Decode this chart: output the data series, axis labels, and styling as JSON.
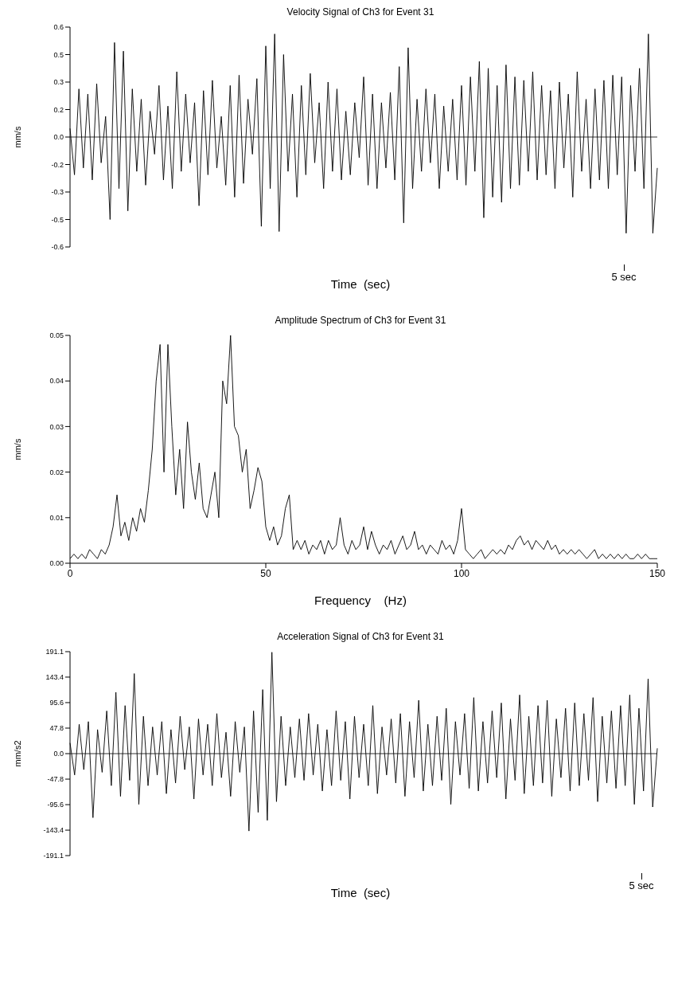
{
  "chart_data": [
    {
      "type": "line",
      "title": "Velocity Signal of Ch3 for Event 31",
      "xlabel": "Time  (sec)",
      "ylabel": "mm/s",
      "marker": "none",
      "line_style": "solid",
      "annotations": [
        "5 sec"
      ],
      "ylim": [
        -0.64,
        0.64
      ],
      "yticks": [
        {
          "value": 0.64,
          "label": "0.6"
        },
        {
          "value": 0.48,
          "label": "0.5"
        },
        {
          "value": 0.32,
          "label": "0.3"
        },
        {
          "value": 0.16,
          "label": "0.2"
        },
        {
          "value": 0,
          "label": "0.0"
        },
        {
          "value": -0.16,
          "label": "-0.2"
        },
        {
          "value": -0.32,
          "label": "-0.3"
        },
        {
          "value": -0.48,
          "label": "-0.5"
        },
        {
          "value": -0.64,
          "label": "-0.6"
        }
      ],
      "ref_lines": [
        {
          "axis": "y",
          "value": 0,
          "color": "#000000"
        }
      ],
      "categories": [
        null,
        null,
        null,
        null,
        null,
        null,
        null,
        null,
        null,
        null,
        null,
        null,
        null,
        null,
        null,
        null,
        null,
        null,
        null,
        null,
        null,
        null,
        null,
        null,
        null,
        null,
        null,
        null,
        null,
        null,
        null,
        null,
        null,
        null,
        null,
        null,
        null,
        null,
        null,
        null,
        null,
        null,
        null,
        null,
        null,
        null,
        null,
        null,
        null,
        null,
        null,
        null,
        null,
        null,
        null,
        null,
        null,
        null,
        null,
        null,
        null,
        null,
        null,
        null,
        null,
        null,
        null,
        null,
        null,
        null,
        null,
        null,
        null,
        null,
        null,
        null,
        null,
        null,
        null,
        null,
        null,
        null,
        null,
        null,
        null,
        null,
        null,
        null,
        null,
        null,
        null,
        null,
        null,
        null,
        null,
        null,
        null,
        null,
        null,
        null,
        null,
        null,
        null,
        null,
        null,
        null,
        null,
        null,
        null,
        null,
        null,
        null,
        null,
        null,
        null,
        null,
        null,
        null,
        null,
        null,
        null,
        null,
        null,
        null,
        null,
        null,
        null,
        null,
        null,
        null,
        null,
        null,
        null
      ],
      "series": [
        {
          "color": "#000000",
          "values": [
            0.05,
            -0.22,
            0.28,
            -0.18,
            0.25,
            -0.25,
            0.31,
            -0.15,
            0.12,
            -0.48,
            0.55,
            -0.3,
            0.5,
            -0.43,
            0.28,
            -0.2,
            0.22,
            -0.28,
            0.15,
            -0.1,
            0.3,
            -0.25,
            0.18,
            -0.3,
            0.38,
            -0.2,
            0.25,
            -0.15,
            0.2,
            -0.4,
            0.27,
            -0.22,
            0.33,
            -0.18,
            0.12,
            -0.28,
            0.3,
            -0.35,
            0.36,
            -0.27,
            0.22,
            -0.1,
            0.34,
            -0.52,
            0.53,
            -0.3,
            0.6,
            -0.55,
            0.48,
            -0.2,
            0.25,
            -0.35,
            0.3,
            -0.22,
            0.37,
            -0.15,
            0.2,
            -0.3,
            0.32,
            -0.2,
            0.28,
            -0.25,
            0.15,
            -0.22,
            0.2,
            -0.12,
            0.35,
            -0.28,
            0.25,
            -0.3,
            0.2,
            -0.18,
            0.26,
            -0.25,
            0.41,
            -0.5,
            0.52,
            -0.3,
            0.22,
            -0.2,
            0.28,
            -0.15,
            0.25,
            -0.3,
            0.18,
            -0.2,
            0.22,
            -0.25,
            0.3,
            -0.28,
            0.35,
            -0.2,
            0.44,
            -0.47,
            0.4,
            -0.35,
            0.3,
            -0.38,
            0.42,
            -0.3,
            0.35,
            -0.28,
            0.33,
            -0.2,
            0.38,
            -0.25,
            0.3,
            -0.22,
            0.27,
            -0.3,
            0.32,
            -0.18,
            0.25,
            -0.35,
            0.38,
            -0.2,
            0.22,
            -0.3,
            0.28,
            -0.25,
            0.33,
            -0.3,
            0.36,
            -0.22,
            0.35,
            -0.56,
            0.3,
            -0.2,
            0.4,
            -0.3,
            0.6,
            -0.56,
            -0.18
          ]
        }
      ]
    },
    {
      "type": "line",
      "title": "Amplitude Spectrum of Ch3 for Event 31",
      "xlabel": "Frequency    (Hz)",
      "ylabel": "mm/s",
      "marker": "none",
      "line_style": "solid",
      "xlim": [
        0,
        150
      ],
      "xticks": [
        0,
        50,
        100,
        150
      ],
      "ylim": [
        0,
        0.05
      ],
      "yticks": [
        {
          "value": 0,
          "label": "0.00"
        },
        {
          "value": 0.01,
          "label": "0.01"
        },
        {
          "value": 0.02,
          "label": "0.02"
        },
        {
          "value": 0.03,
          "label": "0.03"
        },
        {
          "value": 0.04,
          "label": "0.04"
        },
        {
          "value": 0.05,
          "label": "0.05"
        }
      ],
      "x": [
        0,
        1,
        2,
        3,
        4,
        5,
        6,
        7,
        8,
        9,
        10,
        11,
        12,
        13,
        14,
        15,
        16,
        17,
        18,
        19,
        20,
        21,
        22,
        23,
        24,
        25,
        26,
        27,
        28,
        29,
        30,
        31,
        32,
        33,
        34,
        35,
        36,
        37,
        38,
        39,
        40,
        41,
        42,
        43,
        44,
        45,
        46,
        47,
        48,
        49,
        50,
        51,
        52,
        53,
        54,
        55,
        56,
        57,
        58,
        59,
        60,
        61,
        62,
        63,
        64,
        65,
        66,
        67,
        68,
        69,
        70,
        71,
        72,
        73,
        74,
        75,
        76,
        77,
        78,
        79,
        80,
        81,
        82,
        83,
        84,
        85,
        86,
        87,
        88,
        89,
        90,
        91,
        92,
        93,
        94,
        95,
        96,
        97,
        98,
        99,
        100,
        101,
        102,
        103,
        104,
        105,
        106,
        107,
        108,
        109,
        110,
        111,
        112,
        113,
        114,
        115,
        116,
        117,
        118,
        119,
        120,
        121,
        122,
        123,
        124,
        125,
        126,
        127,
        128,
        129,
        130,
        131,
        132,
        133,
        134,
        135,
        136,
        137,
        138,
        139,
        140,
        141,
        142,
        143,
        144,
        145,
        146,
        147,
        148,
        149,
        150
      ],
      "series": [
        {
          "color": "#000000",
          "values": [
            0.001,
            0.002,
            0.001,
            0.002,
            0.001,
            0.003,
            0.002,
            0.001,
            0.003,
            0.002,
            0.004,
            0.008,
            0.015,
            0.006,
            0.009,
            0.005,
            0.01,
            0.007,
            0.012,
            0.009,
            0.016,
            0.025,
            0.04,
            0.048,
            0.02,
            0.048,
            0.03,
            0.015,
            0.025,
            0.012,
            0.031,
            0.02,
            0.014,
            0.022,
            0.012,
            0.01,
            0.015,
            0.02,
            0.01,
            0.04,
            0.035,
            0.05,
            0.03,
            0.028,
            0.02,
            0.025,
            0.012,
            0.016,
            0.021,
            0.018,
            0.008,
            0.005,
            0.008,
            0.004,
            0.006,
            0.012,
            0.015,
            0.003,
            0.005,
            0.003,
            0.005,
            0.002,
            0.004,
            0.003,
            0.005,
            0.002,
            0.005,
            0.003,
            0.004,
            0.01,
            0.004,
            0.002,
            0.005,
            0.003,
            0.004,
            0.008,
            0.003,
            0.007,
            0.004,
            0.002,
            0.004,
            0.003,
            0.005,
            0.002,
            0.004,
            0.006,
            0.003,
            0.004,
            0.007,
            0.003,
            0.004,
            0.002,
            0.004,
            0.003,
            0.002,
            0.005,
            0.003,
            0.004,
            0.002,
            0.005,
            0.012,
            0.003,
            0.002,
            0.001,
            0.002,
            0.003,
            0.001,
            0.002,
            0.003,
            0.002,
            0.003,
            0.002,
            0.004,
            0.003,
            0.005,
            0.006,
            0.004,
            0.005,
            0.003,
            0.005,
            0.004,
            0.003,
            0.005,
            0.003,
            0.004,
            0.002,
            0.003,
            0.002,
            0.003,
            0.002,
            0.003,
            0.002,
            0.001,
            0.002,
            0.003,
            0.001,
            0.002,
            0.001,
            0.002,
            0.001,
            0.002,
            0.001,
            0.002,
            0.001,
            0.001,
            0.002,
            0.001,
            0.002,
            0.001,
            0.001,
            0.001
          ]
        }
      ]
    },
    {
      "type": "line",
      "title": "Acceleration Signal of Ch3 for Event 31",
      "xlabel": "Time  (sec)",
      "ylabel": "mm/s2",
      "marker": "none",
      "line_style": "solid",
      "annotations": [
        "5 sec"
      ],
      "ylim": [
        -191.1,
        191.1
      ],
      "yticks": [
        {
          "value": 191.1,
          "label": "191.1"
        },
        {
          "value": 143.4,
          "label": "143.4"
        },
        {
          "value": 95.6,
          "label": "95.6"
        },
        {
          "value": 47.8,
          "label": "47.8"
        },
        {
          "value": 0,
          "label": "0.0"
        },
        {
          "value": -47.8,
          "label": "-47.8"
        },
        {
          "value": -95.6,
          "label": "-95.6"
        },
        {
          "value": -143.4,
          "label": "-143.4"
        },
        {
          "value": -191.1,
          "label": "-191.1"
        }
      ],
      "ref_lines": [
        {
          "axis": "y",
          "value": 0,
          "color": "#000000"
        }
      ],
      "categories": [
        null,
        null,
        null,
        null,
        null,
        null,
        null,
        null,
        null,
        null,
        null,
        null,
        null,
        null,
        null,
        null,
        null,
        null,
        null,
        null,
        null,
        null,
        null,
        null,
        null,
        null,
        null,
        null,
        null,
        null,
        null,
        null,
        null,
        null,
        null,
        null,
        null,
        null,
        null,
        null,
        null,
        null,
        null,
        null,
        null,
        null,
        null,
        null,
        null,
        null,
        null,
        null,
        null,
        null,
        null,
        null,
        null,
        null,
        null,
        null,
        null,
        null,
        null,
        null,
        null,
        null,
        null,
        null,
        null,
        null,
        null,
        null,
        null,
        null,
        null,
        null,
        null,
        null,
        null,
        null,
        null,
        null,
        null,
        null,
        null,
        null,
        null,
        null,
        null,
        null,
        null,
        null,
        null,
        null,
        null,
        null,
        null,
        null,
        null,
        null,
        null,
        null,
        null,
        null,
        null,
        null,
        null,
        null,
        null,
        null,
        null,
        null,
        null,
        null,
        null,
        null,
        null,
        null,
        null,
        null,
        null,
        null,
        null,
        null,
        null,
        null,
        null,
        null,
        null
      ],
      "series": [
        {
          "color": "#000000",
          "values": [
            20,
            -40,
            55,
            -30,
            60,
            -120,
            45,
            -35,
            80,
            -60,
            115,
            -80,
            90,
            -50,
            150,
            -95,
            70,
            -60,
            50,
            -40,
            60,
            -75,
            45,
            -55,
            70,
            -30,
            50,
            -85,
            65,
            -40,
            55,
            -60,
            75,
            -45,
            40,
            -80,
            60,
            -35,
            50,
            -145,
            80,
            -110,
            120,
            -125,
            190,
            -90,
            70,
            -60,
            50,
            -45,
            65,
            -50,
            75,
            -40,
            55,
            -70,
            45,
            -60,
            80,
            -50,
            60,
            -85,
            70,
            -45,
            55,
            -60,
            90,
            -75,
            50,
            -40,
            65,
            -55,
            75,
            -80,
            60,
            -45,
            100,
            -70,
            55,
            -60,
            70,
            -50,
            85,
            -95,
            60,
            -40,
            75,
            -65,
            105,
            -70,
            60,
            -55,
            80,
            -45,
            95,
            -85,
            65,
            -50,
            110,
            -75,
            70,
            -60,
            90,
            -55,
            100,
            -80,
            65,
            -45,
            85,
            -70,
            95,
            -60,
            75,
            -50,
            105,
            -90,
            70,
            -55,
            80,
            -65,
            90,
            -60,
            110,
            -95,
            85,
            -70,
            140,
            -100,
            10
          ]
        }
      ]
    }
  ]
}
